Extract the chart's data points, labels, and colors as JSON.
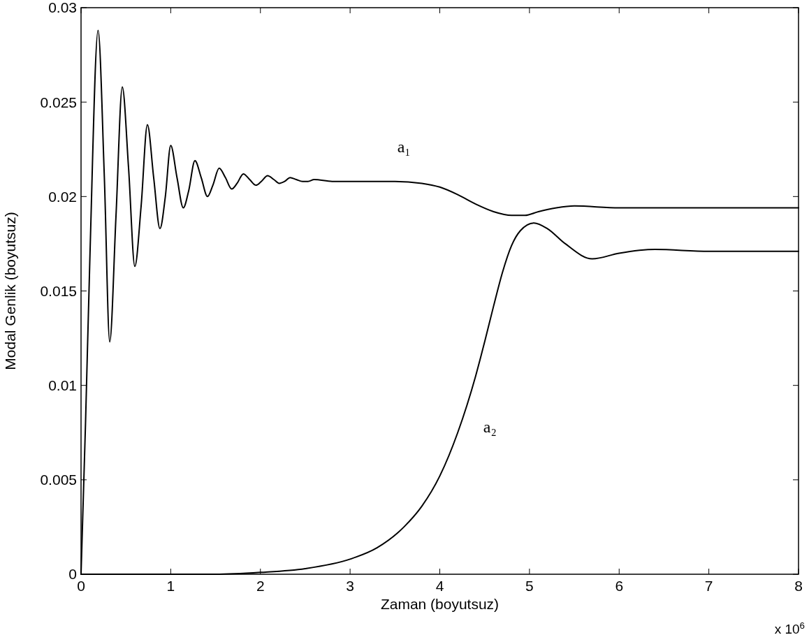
{
  "chart_data": {
    "type": "line",
    "xlabel": "Zaman (boyutsuz)",
    "ylabel": "Modal Genlik (boyutsuz)",
    "xlim": [
      0,
      8
    ],
    "ylim": [
      0,
      0.03
    ],
    "xticks": [
      0,
      1,
      2,
      3,
      4,
      5,
      6,
      7,
      8
    ],
    "yticks": [
      0,
      0.005,
      0.01,
      0.015,
      0.02,
      0.025,
      0.03
    ],
    "grid": false,
    "marker": "none",
    "line_style": "solid",
    "series": [
      {
        "name": "a₁",
        "color": "#000000",
        "x": [
          0,
          0.05,
          0.1,
          0.19,
          0.26,
          0.32,
          0.39,
          0.46,
          0.53,
          0.6,
          0.67,
          0.74,
          0.81,
          0.88,
          0.94,
          1,
          1.07,
          1.14,
          1.2,
          1.27,
          1.34,
          1.41,
          1.47,
          1.54,
          1.61,
          1.68,
          1.74,
          1.81,
          1.88,
          1.95,
          2.01,
          2.08,
          2.15,
          2.21,
          2.27,
          2.33,
          2.4,
          2.47,
          2.53,
          2.6,
          2.8,
          3,
          3.5,
          3.8,
          4,
          4.2,
          4.4,
          4.6,
          4.8,
          4.95,
          5.1,
          5.3,
          5.5,
          6,
          6.5,
          7,
          8
        ],
        "values": [
          0,
          0.008,
          0.017,
          0.0288,
          0.021,
          0.0123,
          0.019,
          0.0258,
          0.0215,
          0.0163,
          0.0195,
          0.0238,
          0.021,
          0.0183,
          0.02,
          0.0227,
          0.021,
          0.0194,
          0.0203,
          0.0219,
          0.021,
          0.02,
          0.0206,
          0.0215,
          0.021,
          0.0204,
          0.0207,
          0.0212,
          0.0209,
          0.0206,
          0.0208,
          0.0211,
          0.0209,
          0.0207,
          0.0208,
          0.021,
          0.0209,
          0.0208,
          0.0208,
          0.0209,
          0.0208,
          0.0208,
          0.0208,
          0.0207,
          0.0205,
          0.0201,
          0.0196,
          0.0192,
          0.019,
          0.019,
          0.0192,
          0.0194,
          0.0195,
          0.0194,
          0.0194,
          0.0194,
          0.0194
        ]
      },
      {
        "name": "a₂",
        "color": "#000000",
        "x": [
          0,
          1,
          1.5,
          2,
          2.5,
          3,
          3.3,
          3.6,
          3.8,
          4,
          4.2,
          4.4,
          4.5,
          4.6,
          4.7,
          4.8,
          4.9,
          5.05,
          5.2,
          5.4,
          5.7,
          6,
          6.4,
          7,
          8
        ],
        "values": [
          0,
          0,
          0,
          0.0001,
          0.0003,
          0.0008,
          0.0014,
          0.0025,
          0.0036,
          0.0052,
          0.0075,
          0.0105,
          0.0123,
          0.0142,
          0.016,
          0.0174,
          0.0182,
          0.0186,
          0.0183,
          0.0175,
          0.0167,
          0.017,
          0.0172,
          0.0171,
          0.0171
        ]
      }
    ],
    "annotations": [
      "x 10$^{6}$"
    ]
  }
}
